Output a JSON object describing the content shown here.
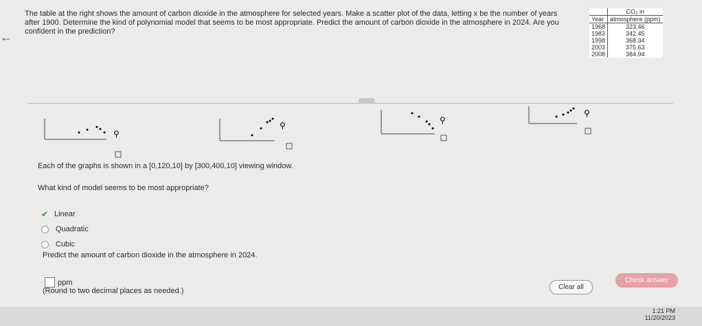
{
  "problem": {
    "text": "The table at the right shows the amount of carbon dioxide in the atmosphere for selected years. Make a scatter plot of the data, letting x be the number of years after 1900. Determine the kind of polynomial model that seems to be most appropriate. Predict the amount of carbon dioxide in the atmosphere in 2024. Are you confident in the prediction?"
  },
  "table": {
    "header": [
      "Year",
      "CO₂ in",
      "atmosphere (ppm)"
    ],
    "rows": [
      [
        "1968",
        "323.46"
      ],
      [
        "1983",
        "342.45"
      ],
      [
        "1998",
        "368.34"
      ],
      [
        "2003",
        "375.63"
      ],
      [
        "2008",
        "384.94"
      ]
    ]
  },
  "graphs_note": "Each of the graphs is shown in a [0,120,10] by [300,400,10] viewing window.",
  "question1": {
    "prompt": "What kind of model seems to be most appropriate?",
    "options": [
      "Linear",
      "Quadratic",
      "Cubic"
    ],
    "selected": 0
  },
  "question2": {
    "prompt": "Predict the amount of carbon dioxide in the atmosphere in 2024.",
    "unit": "ppm",
    "hint": "(Round to two decimal places as needed.)"
  },
  "buttons": {
    "clear": "Clear all",
    "check": "Check answer"
  },
  "taskbar": {
    "time": "1:21 PM",
    "date": "11/20/2023"
  }
}
